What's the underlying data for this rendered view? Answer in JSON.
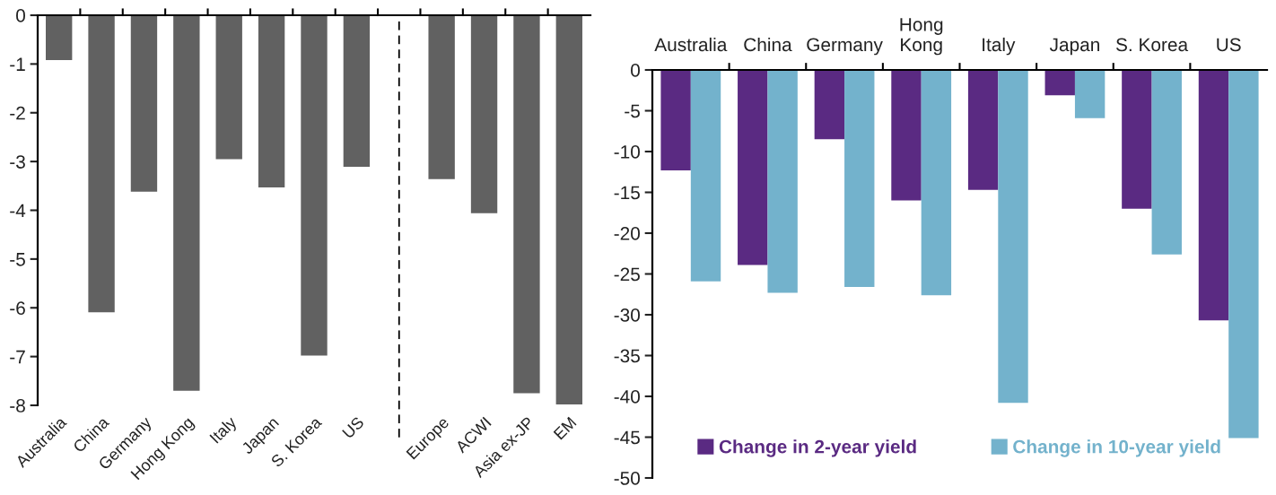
{
  "chart_data": [
    {
      "type": "bar",
      "categories": [
        "Australia",
        "China",
        "Germany",
        "Hong Kong",
        "Italy",
        "Japan",
        "S. Korea",
        "US",
        null,
        "Europe",
        "ACWI",
        "Asia ex-JP",
        "EM"
      ],
      "values": [
        -0.92,
        -6.09,
        -3.62,
        -7.7,
        -2.95,
        -3.53,
        -6.98,
        -3.11,
        null,
        -3.36,
        -4.06,
        -7.75,
        -7.98
      ],
      "color": "#616161",
      "ylim": [
        -8,
        0
      ],
      "yticks": [
        0,
        -1,
        -2,
        -3,
        -4,
        -5,
        -6,
        -7,
        -8
      ],
      "grid": false,
      "legend": false
    },
    {
      "type": "bar",
      "categories": [
        "Australia",
        "China",
        "Germany",
        "Hong\nKong",
        "Italy",
        "Japan",
        "S. Korea",
        "US"
      ],
      "series": [
        {
          "name": "Change in 2-year yield",
          "color": "#5a2a82",
          "values": [
            -12.3,
            -23.9,
            -8.5,
            -16.0,
            -14.7,
            -3.1,
            -17.0,
            -30.7
          ]
        },
        {
          "name": "Change in 10-year yield",
          "color": "#73b2cc",
          "values": [
            -25.9,
            -27.3,
            -26.6,
            -27.6,
            -40.8,
            -5.9,
            -22.6,
            -45.1
          ]
        }
      ],
      "ylim": [
        -50,
        0
      ],
      "yticks": [
        0,
        -5,
        -10,
        -15,
        -20,
        -25,
        -30,
        -35,
        -40,
        -45,
        -50
      ],
      "grid": false,
      "legend": "bottom"
    }
  ]
}
